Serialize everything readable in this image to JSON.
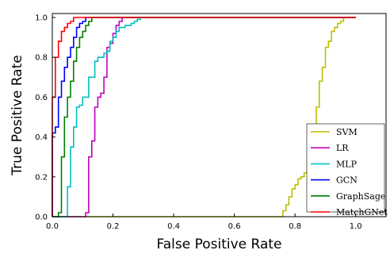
{
  "chart_data": {
    "type": "line",
    "xlabel": "False Positive Rate",
    "ylabel": "True Positive Rate",
    "xlim": [
      0,
      1.1
    ],
    "ylim": [
      0,
      1.02
    ],
    "xticks": [
      "0.0",
      "0.2",
      "0.4",
      "0.6",
      "0.8",
      "1.0"
    ],
    "yticks": [
      "0.0",
      "0.2",
      "0.4",
      "0.6",
      "0.8",
      "1.0"
    ],
    "xtick_values": [
      0,
      0.2,
      0.4,
      0.6,
      0.8,
      1.0
    ],
    "ytick_values": [
      0,
      0.2,
      0.4,
      0.6,
      0.8,
      1.0
    ],
    "grid": false,
    "legend_position": "lower-right",
    "series": [
      {
        "name": "SVM",
        "color": "#bfbf00",
        "x": [
          0,
          0.75,
          0.76,
          0.77,
          0.78,
          0.78,
          0.79,
          0.8,
          0.81,
          0.82,
          0.83,
          0.84,
          0.85,
          0.86,
          0.87,
          0.87,
          0.88,
          0.88,
          0.89,
          0.9,
          0.9,
          0.91,
          0.92,
          0.92,
          0.93,
          0.94,
          0.95,
          0.96,
          0.96,
          1.0
        ],
        "y": [
          0,
          0,
          0.03,
          0.06,
          0.06,
          0.1,
          0.14,
          0.16,
          0.19,
          0.2,
          0.22,
          0.3,
          0.36,
          0.4,
          0.45,
          0.55,
          0.6,
          0.68,
          0.75,
          0.8,
          0.85,
          0.88,
          0.9,
          0.93,
          0.95,
          0.97,
          0.98,
          0.99,
          1.0,
          1.0
        ]
      },
      {
        "name": "LR",
        "color": "#bf00bf",
        "x": [
          0,
          0.1,
          0.11,
          0.12,
          0.13,
          0.14,
          0.14,
          0.15,
          0.16,
          0.17,
          0.18,
          0.18,
          0.19,
          0.2,
          0.21,
          0.22,
          0.23,
          1.0
        ],
        "y": [
          0,
          0,
          0.02,
          0.3,
          0.38,
          0.45,
          0.55,
          0.6,
          0.62,
          0.7,
          0.8,
          0.85,
          0.87,
          0.92,
          0.96,
          0.98,
          1.0,
          1.0
        ]
      },
      {
        "name": "MLP",
        "color": "#00bfbf",
        "x": [
          0,
          0.04,
          0.05,
          0.06,
          0.07,
          0.08,
          0.09,
          0.1,
          0.12,
          0.14,
          0.15,
          0.17,
          0.18,
          0.19,
          0.2,
          0.21,
          0.22,
          0.24,
          0.26,
          0.27,
          0.28,
          0.29,
          1.0
        ],
        "y": [
          0,
          0,
          0.15,
          0.35,
          0.45,
          0.55,
          0.56,
          0.6,
          0.7,
          0.78,
          0.8,
          0.82,
          0.83,
          0.88,
          0.9,
          0.93,
          0.95,
          0.96,
          0.97,
          0.98,
          0.99,
          1.0,
          1.0
        ]
      },
      {
        "name": "GCN",
        "color": "#0000ff",
        "x": [
          0,
          0.0,
          0.01,
          0.02,
          0.03,
          0.04,
          0.05,
          0.06,
          0.07,
          0.08,
          0.09,
          0.1,
          0.11,
          0.12,
          1.0
        ],
        "y": [
          0,
          0.42,
          0.45,
          0.6,
          0.68,
          0.75,
          0.8,
          0.85,
          0.9,
          0.95,
          0.97,
          0.98,
          1.0,
          1.0,
          1.0
        ]
      },
      {
        "name": "GraphSage",
        "color": "#008000",
        "x": [
          0,
          0.02,
          0.03,
          0.04,
          0.05,
          0.06,
          0.07,
          0.08,
          0.09,
          0.1,
          0.11,
          0.12,
          0.13,
          1.0
        ],
        "y": [
          0,
          0.02,
          0.3,
          0.5,
          0.6,
          0.68,
          0.78,
          0.85,
          0.9,
          0.93,
          0.96,
          0.98,
          1.0,
          1.0
        ]
      },
      {
        "name": "MatchGNet",
        "color": "#ff0000",
        "x": [
          0,
          0.0,
          0.01,
          0.02,
          0.03,
          0.04,
          0.05,
          0.06,
          0.07,
          0.07,
          1.0
        ],
        "y": [
          0,
          0.6,
          0.8,
          0.88,
          0.93,
          0.95,
          0.97,
          0.98,
          0.99,
          1.0,
          1.0
        ]
      }
    ]
  }
}
